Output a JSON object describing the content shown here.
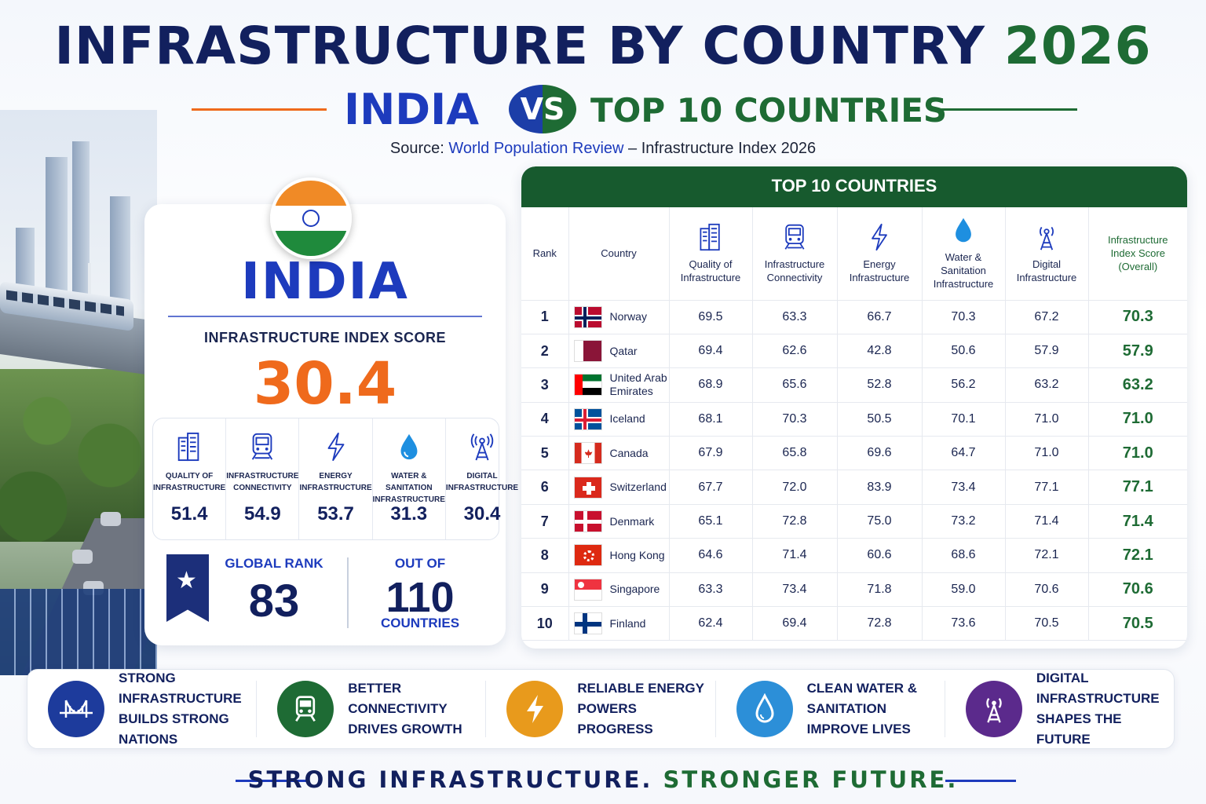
{
  "header": {
    "title_main": "INFRASTRUCTURE BY COUNTRY",
    "title_year": "2026",
    "left_label": "INDIA",
    "vs_label": "VS",
    "right_label": "TOP 10 COUNTRIES",
    "source_prefix": "Source:",
    "source_name": "World Population Review",
    "source_suffix": "– Infrastructure Index 2026"
  },
  "india": {
    "name": "INDIA",
    "score_label": "INFRASTRUCTURE INDEX SCORE",
    "score": "30.4",
    "subscores": [
      {
        "icon": "building-icon",
        "label_1": "QUALITY OF",
        "label_2": "INFRASTRUCTURE",
        "value": "51.4"
      },
      {
        "icon": "train-icon",
        "label_1": "INFRASTRUCTURE",
        "label_2": "CONNECTIVITY",
        "value": "54.9"
      },
      {
        "icon": "lightning-icon",
        "label_1": "ENERGY",
        "label_2": "INFRASTRUCTURE",
        "value": "53.7"
      },
      {
        "icon": "water-drop-icon",
        "label_1": "WATER & SANITATION",
        "label_2": "INFRASTRUCTURE",
        "value": "31.3"
      },
      {
        "icon": "antenna-icon",
        "label_1": "DIGITAL",
        "label_2": "INFRASTRUCTURE",
        "value": "30.4"
      }
    ],
    "rank_label": "GLOBAL RANK",
    "rank": "83",
    "out_of_label": "OUT OF",
    "out_of": "110",
    "out_of_unit": "COUNTRIES"
  },
  "table": {
    "title": "TOP 10 COUNTRIES",
    "headers": {
      "rank": "Rank",
      "country": "Country",
      "quality_1": "Quality of",
      "quality_2": "Infrastructure",
      "connectivity_1": "Infrastructure",
      "connectivity_2": "Connectivity",
      "energy_1": "Energy",
      "energy_2": "Infrastructure",
      "water_1": "Water &",
      "water_2": "Sanitation",
      "water_3": "Infrastructure",
      "digital_1": "Digital",
      "digital_2": "Infrastructure",
      "overall_1": "Infrastructure",
      "overall_2": "Index Score",
      "overall_3": "(Overall)"
    },
    "rows": [
      {
        "rank": "1",
        "country": "Norway",
        "quality": "69.5",
        "connectivity": "63.3",
        "energy": "66.7",
        "water": "70.3",
        "digital": "67.2",
        "overall": "70.3"
      },
      {
        "rank": "2",
        "country": "Qatar",
        "quality": "69.4",
        "connectivity": "62.6",
        "energy": "42.8",
        "water": "50.6",
        "digital": "57.9",
        "overall": "57.9"
      },
      {
        "rank": "3",
        "country_1": "United Arab",
        "country_2": "Emirates",
        "quality": "68.9",
        "connectivity": "65.6",
        "energy": "52.8",
        "water": "56.2",
        "digital": "63.2",
        "overall": "63.2"
      },
      {
        "rank": "4",
        "country": "Iceland",
        "quality": "68.1",
        "connectivity": "70.3",
        "energy": "50.5",
        "water": "70.1",
        "digital": "71.0",
        "overall": "71.0"
      },
      {
        "rank": "5",
        "country": "Canada",
        "quality": "67.9",
        "connectivity": "65.8",
        "energy": "69.6",
        "water": "64.7",
        "digital": "71.0",
        "overall": "71.0"
      },
      {
        "rank": "6",
        "country": "Switzerland",
        "quality": "67.7",
        "connectivity": "72.0",
        "energy": "83.9",
        "water": "73.4",
        "digital": "77.1",
        "overall": "77.1"
      },
      {
        "rank": "7",
        "country": "Denmark",
        "quality": "65.1",
        "connectivity": "72.8",
        "energy": "75.0",
        "water": "73.2",
        "digital": "71.4",
        "overall": "71.4"
      },
      {
        "rank": "8",
        "country": "Hong Kong",
        "quality": "64.6",
        "connectivity": "71.4",
        "energy": "60.6",
        "water": "68.6",
        "digital": "72.1",
        "overall": "72.1"
      },
      {
        "rank": "9",
        "country": "Singapore",
        "quality": "63.3",
        "connectivity": "73.4",
        "energy": "71.8",
        "water": "59.0",
        "digital": "70.6",
        "overall": "70.6"
      },
      {
        "rank": "10",
        "country": "Finland",
        "quality": "62.4",
        "connectivity": "69.4",
        "energy": "72.8",
        "water": "73.6",
        "digital": "70.5",
        "overall": "70.5"
      }
    ]
  },
  "banner": [
    {
      "icon": "bridge-icon",
      "color": "#1d3b9c",
      "line_1": "STRONG INFRASTRUCTURE",
      "line_2": "BUILDS STRONG NATIONS"
    },
    {
      "icon": "train-icon",
      "color": "#1e6b34",
      "line_1": "BETTER CONNECTIVITY",
      "line_2": "DRIVES GROWTH"
    },
    {
      "icon": "lightning-icon",
      "color": "#e89a1c",
      "line_1": "RELIABLE ENERGY",
      "line_2": "POWERS PROGRESS"
    },
    {
      "icon": "water-drop-icon",
      "color": "#2c8fd8",
      "line_1": "CLEAN WATER & SANITATION",
      "line_2": "IMPROVE LIVES"
    },
    {
      "icon": "antenna-icon",
      "color": "#5b2a8c",
      "line_1": "DIGITAL INFRASTRUCTURE",
      "line_2": "SHAPES THE FUTURE"
    }
  ],
  "tagline": {
    "part_1": "STRONG INFRASTRUCTURE.",
    "part_2": "STRONGER FUTURE."
  },
  "colors": {
    "navy": "#12205e",
    "blue": "#1d3bbd",
    "green": "#1e6b34",
    "orange": "#ef6a1c"
  }
}
